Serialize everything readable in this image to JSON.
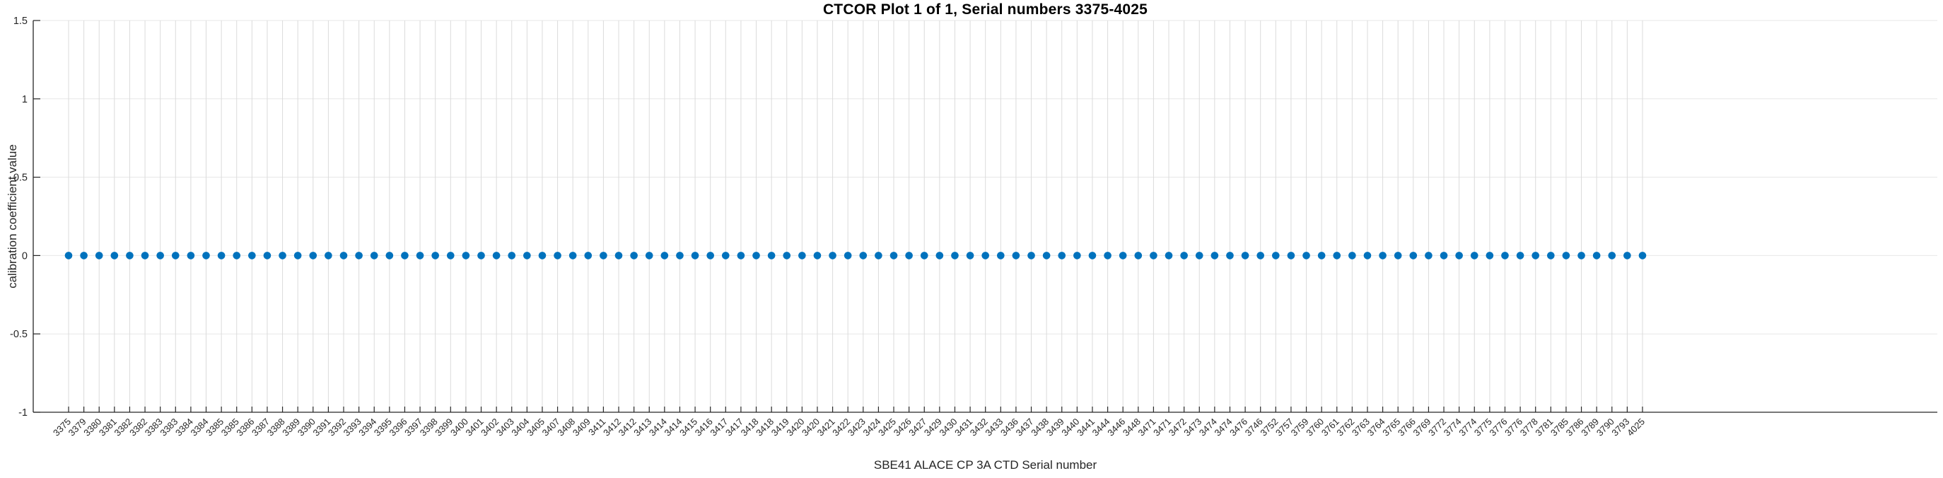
{
  "chart_data": {
    "type": "scatter",
    "title": "CTCOR Plot 1 of 1, Serial numbers 3375-4025",
    "xlabel": "SBE41 ALACE CP 3A CTD Serial number",
    "ylabel": "calibration coefficient value",
    "categories": [
      "3375",
      "3379",
      "3380",
      "3381",
      "3382",
      "3382",
      "3383",
      "3383",
      "3384",
      "3384",
      "3385",
      "3385",
      "3386",
      "3387",
      "3388",
      "3389",
      "3390",
      "3391",
      "3392",
      "3393",
      "3394",
      "3395",
      "3396",
      "3397",
      "3398",
      "3399",
      "3400",
      "3401",
      "3402",
      "3403",
      "3404",
      "3405",
      "3407",
      "3408",
      "3409",
      "3411",
      "3412",
      "3412",
      "3413",
      "3414",
      "3414",
      "3415",
      "3416",
      "3417",
      "3417",
      "3418",
      "3418",
      "3419",
      "3420",
      "3420",
      "3421",
      "3422",
      "3423",
      "3424",
      "3425",
      "3426",
      "3427",
      "3429",
      "3430",
      "3431",
      "3432",
      "3433",
      "3436",
      "3437",
      "3438",
      "3439",
      "3440",
      "3441",
      "3444",
      "3446",
      "3448",
      "3471",
      "3471",
      "3472",
      "3473",
      "3474",
      "3474",
      "3476",
      "3746",
      "3752",
      "3757",
      "3759",
      "3760",
      "3761",
      "3762",
      "3763",
      "3764",
      "3765",
      "3766",
      "3769",
      "3772",
      "3774",
      "3774",
      "3775",
      "3776",
      "3776",
      "3778",
      "3781",
      "3785",
      "3786",
      "3789",
      "3790",
      "3793",
      "4025"
    ],
    "values": [
      0,
      0,
      0,
      0,
      0,
      0,
      0,
      0,
      0,
      0,
      0,
      0,
      0,
      0,
      0,
      0,
      0,
      0,
      0,
      0,
      0,
      0,
      0,
      0,
      0,
      0,
      0,
      0,
      0,
      0,
      0,
      0,
      0,
      0,
      0,
      0,
      0,
      0,
      0,
      0,
      0,
      0,
      0,
      0,
      0,
      0,
      0,
      0,
      0,
      0,
      0,
      0,
      0,
      0,
      0,
      0,
      0,
      0,
      0,
      0,
      0,
      0,
      0,
      0,
      0,
      0,
      0,
      0,
      0,
      0,
      0,
      0,
      0,
      0,
      0,
      0,
      0,
      0,
      0,
      0,
      0,
      0,
      0,
      0,
      0,
      0,
      0,
      0,
      0,
      0,
      0,
      0,
      0,
      0,
      0,
      0,
      0,
      0,
      0,
      0,
      0,
      0,
      0,
      0
    ],
    "ylim": [
      -1,
      1.5
    ],
    "yticks": [
      -1,
      -0.5,
      0,
      0.5,
      1,
      1.5
    ],
    "ytick_labels": [
      "-1",
      "-0.5",
      "0",
      "0.5",
      "1",
      "1.5"
    ],
    "xtick_rotation_deg": 45,
    "grid": "on",
    "legend_position": "none",
    "marker_color": "#0072BD",
    "axis_color": "#262626",
    "vgrid_color": "#dbdbdb",
    "hgrid_color": "#e7e7e7"
  }
}
